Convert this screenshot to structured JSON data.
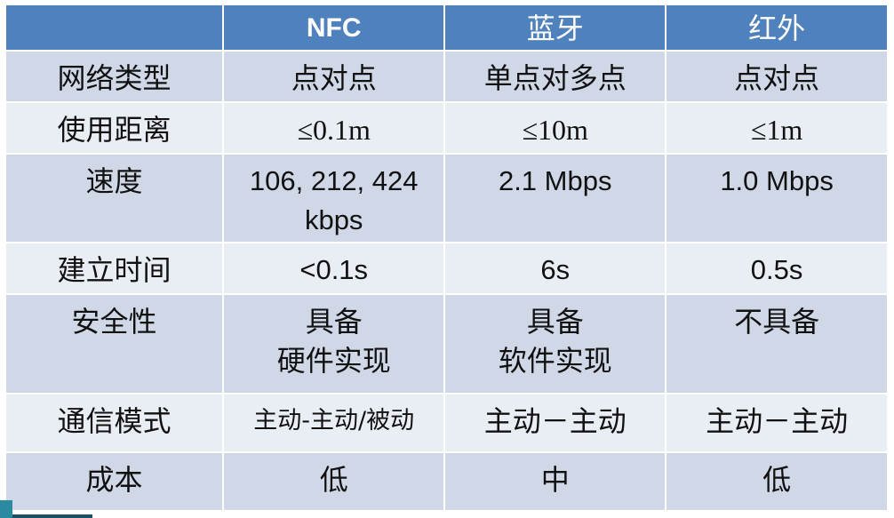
{
  "table": {
    "headers": [
      "",
      "NFC",
      "蓝牙",
      "红外"
    ],
    "rows": [
      {
        "label": "网络类型",
        "cells": [
          "点对点",
          "单点对多点",
          "点对点"
        ]
      },
      {
        "label": "使用距离",
        "cells": [
          "≤0.1m",
          "≤10m",
          "≤1m"
        ]
      },
      {
        "label": "速度",
        "cells": [
          "106, 212, 424 kbps",
          "2.1 Mbps",
          "1.0 Mbps"
        ]
      },
      {
        "label": "建立时间",
        "cells": [
          "<0.1s",
          "6s",
          "0.5s"
        ]
      },
      {
        "label": "安全性",
        "cells": [
          "具备\n硬件实现",
          "具备\n软件实现",
          "不具备"
        ]
      },
      {
        "label": "通信模式",
        "cells": [
          "主动-主动/被动",
          "主动－主动",
          "主动－主动"
        ]
      },
      {
        "label": "成本",
        "cells": [
          "低",
          "中",
          "低"
        ]
      }
    ]
  },
  "colors": {
    "header": "#4F81BD",
    "row_dark": "#D0D8E8",
    "row_light": "#E9EDF4"
  }
}
